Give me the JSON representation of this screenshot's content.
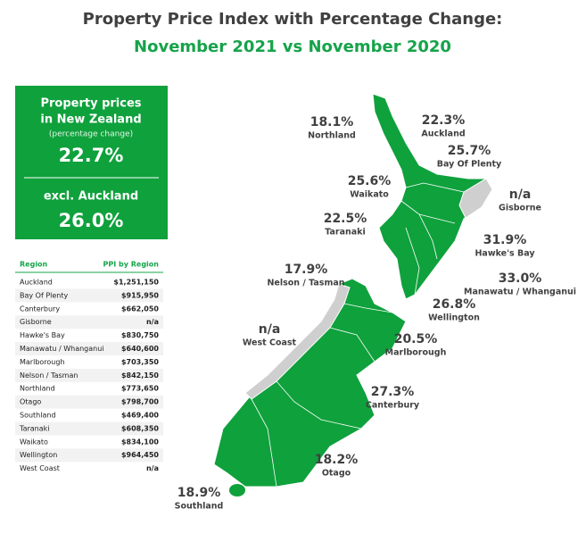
{
  "title": {
    "line1": "Property Price Index with Percentage Change:",
    "line2": "November 2021 vs November 2020"
  },
  "summary": {
    "line1": "Property prices",
    "line2": "in New Zealand",
    "note": "(percentage change)",
    "value": "22.7%",
    "excl_label": "excl. Auckland",
    "excl_value": "26.0%"
  },
  "table": {
    "columns": [
      "Region",
      "PPI by Region"
    ],
    "rows": [
      [
        "Auckland",
        "$1,251,150"
      ],
      [
        "Bay Of Plenty",
        "$915,950"
      ],
      [
        "Canterbury",
        "$662,050"
      ],
      [
        "Gisborne",
        "n/a"
      ],
      [
        "Hawke's Bay",
        "$830,750"
      ],
      [
        "Manawatu / Whanganui",
        "$640,600"
      ],
      [
        "Marlborough",
        "$703,350"
      ],
      [
        "Nelson / Tasman",
        "$842,150"
      ],
      [
        "Northland",
        "$773,650"
      ],
      [
        "Otago",
        "$798,700"
      ],
      [
        "Southland",
        "$469,400"
      ],
      [
        "Taranaki",
        "$608,350"
      ],
      [
        "Waikato",
        "$834,100"
      ],
      [
        "Wellington",
        "$964,450"
      ],
      [
        "West Coast",
        "n/a"
      ]
    ]
  },
  "map": {
    "regions": [
      {
        "name": "Northland",
        "change": "18.1%"
      },
      {
        "name": "Auckland",
        "change": "22.3%"
      },
      {
        "name": "Bay Of Plenty",
        "change": "25.7%"
      },
      {
        "name": "Waikato",
        "change": "25.6%"
      },
      {
        "name": "Gisborne",
        "change": "n/a"
      },
      {
        "name": "Taranaki",
        "change": "22.5%"
      },
      {
        "name": "Hawke's Bay",
        "change": "31.9%"
      },
      {
        "name": "Nelson / Tasman",
        "change": "17.9%"
      },
      {
        "name": "Manawatu / Whanganui",
        "change": "33.0%"
      },
      {
        "name": "Wellington",
        "change": "26.8%"
      },
      {
        "name": "West Coast",
        "change": "n/a"
      },
      {
        "name": "Marlborough",
        "change": "20.5%"
      },
      {
        "name": "Canterbury",
        "change": "27.3%"
      },
      {
        "name": "Otago",
        "change": "18.2%"
      },
      {
        "name": "Southland",
        "change": "18.9%"
      }
    ]
  }
}
